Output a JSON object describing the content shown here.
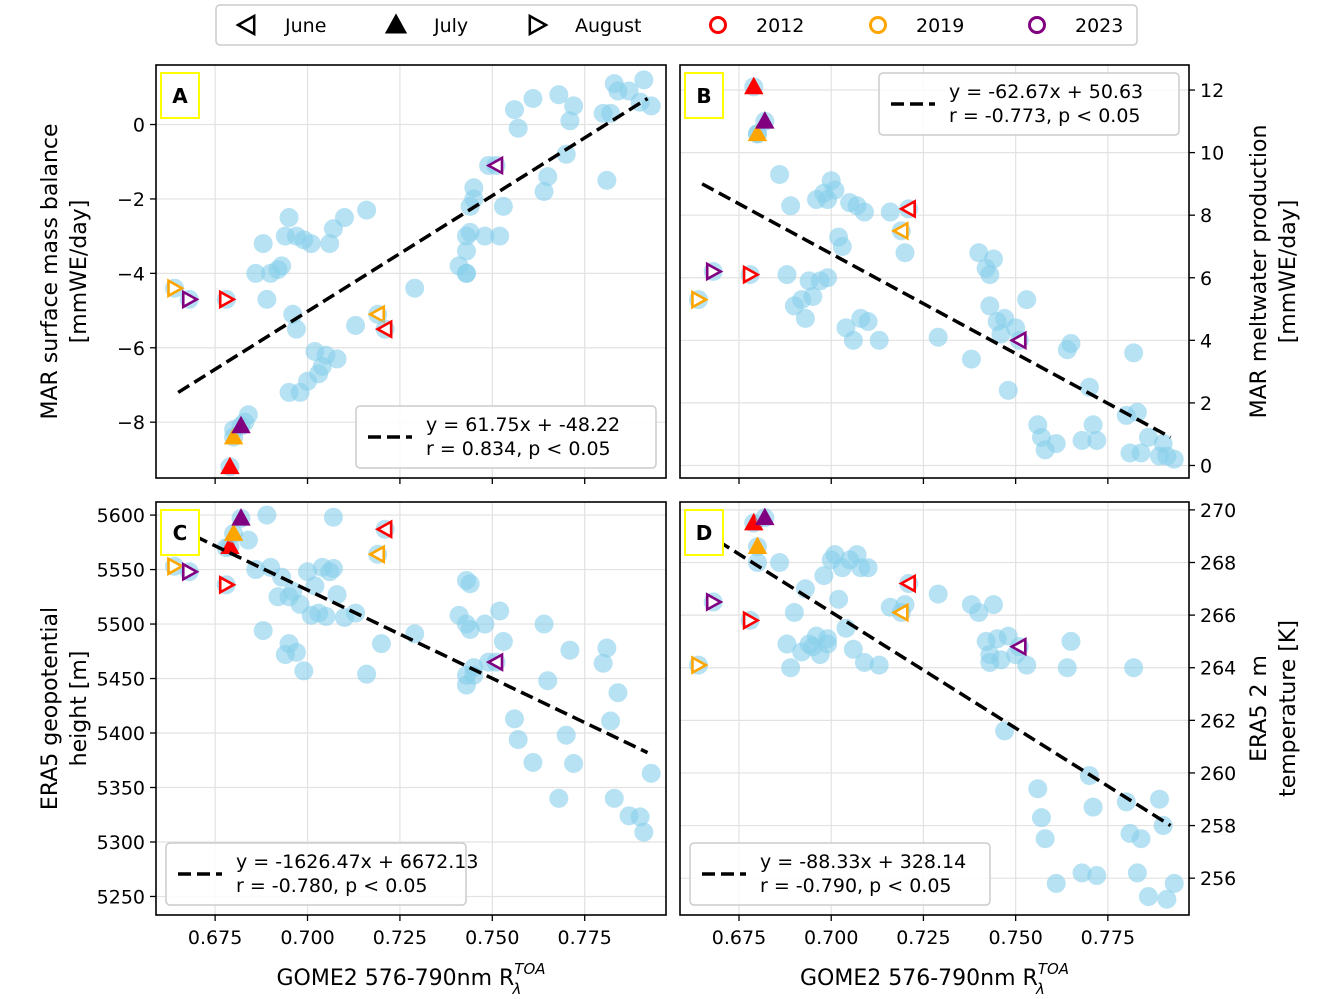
{
  "legend": {
    "entries": [
      {
        "label": "June",
        "marker": "tri-left-open",
        "color": "#000000"
      },
      {
        "label": "July",
        "marker": "tri-up-filled",
        "color": "#000000"
      },
      {
        "label": "August",
        "marker": "tri-right-open",
        "color": "#000000"
      },
      {
        "label": "2012",
        "marker": "circle-open",
        "color": "#ff0000"
      },
      {
        "label": "2019",
        "marker": "circle-open",
        "color": "#ffa500"
      },
      {
        "label": "2023",
        "marker": "circle-open",
        "color": "#800080"
      }
    ]
  },
  "colors": {
    "points": "#87ceeb",
    "fit": "#000000",
    "grid": "#e2e2e2",
    "panel_label_border": "#ffff00",
    "2012": "#ff0000",
    "2019": "#ffa500",
    "2023": "#800080"
  },
  "chart_data": [
    {
      "panel": "A",
      "type": "scatter",
      "ylabel_lines": [
        "MAR surface mass balance",
        "[mmWE/day]"
      ],
      "ylabel_side": "left",
      "xlabel": "",
      "xlim": [
        0.659,
        0.797
      ],
      "ylim": [
        -9.5,
        1.6
      ],
      "xticks": [
        0.675,
        0.7,
        0.725,
        0.75,
        0.775
      ],
      "xtick_labels": [],
      "yticks": [
        0,
        -2,
        -4,
        -6,
        -8
      ],
      "ytick_labels": [
        "0",
        "−2",
        "−4",
        "−6",
        "−8"
      ],
      "fit": {
        "x": [
          0.665,
          0.792
        ],
        "y": [
          -7.2,
          0.7
        ]
      },
      "fit_text": [
        "y = 61.75x + -48.22",
        "r = 0.834, p < 0.05"
      ],
      "fit_loc": "bottom-right",
      "x": [
        0.68,
        0.683,
        0.684,
        0.686,
        0.688,
        0.689,
        0.69,
        0.692,
        0.693,
        0.694,
        0.695,
        0.695,
        0.696,
        0.697,
        0.697,
        0.698,
        0.699,
        0.7,
        0.701,
        0.702,
        0.703,
        0.704,
        0.705,
        0.706,
        0.707,
        0.708,
        0.71,
        0.713,
        0.716,
        0.729,
        0.741,
        0.743,
        0.743,
        0.743,
        0.743,
        0.744,
        0.744,
        0.745,
        0.745,
        0.748,
        0.749,
        0.752,
        0.753,
        0.756,
        0.757,
        0.761,
        0.764,
        0.765,
        0.768,
        0.77,
        0.771,
        0.772,
        0.78,
        0.781,
        0.782,
        0.783,
        0.784,
        0.787,
        0.79,
        0.791,
        0.793
      ],
      "y": [
        -8.2,
        -8.0,
        -7.8,
        -4.0,
        -3.2,
        -4.7,
        -4.0,
        -3.9,
        -3.8,
        -3.0,
        -2.5,
        -7.2,
        -5.1,
        -3.0,
        -5.5,
        -7.2,
        -3.1,
        -6.9,
        -3.2,
        -6.1,
        -6.7,
        -6.5,
        -6.2,
        -3.2,
        -2.8,
        -6.3,
        -2.5,
        -5.4,
        -2.3,
        -4.4,
        -3.8,
        -4.0,
        -4.0,
        -3.4,
        -3.0,
        -2.2,
        -2.9,
        -1.7,
        -2.0,
        -3.0,
        -1.1,
        -3.0,
        -2.2,
        0.4,
        -0.1,
        0.7,
        -1.8,
        -1.4,
        0.8,
        -0.8,
        0.1,
        0.5,
        0.3,
        -1.5,
        0.3,
        1.1,
        0.9,
        0.9,
        0.6,
        1.2,
        0.5
      ],
      "highlights": [
        {
          "x": 0.664,
          "y": -4.4,
          "month": "August",
          "year": "2019"
        },
        {
          "x": 0.668,
          "y": -4.7,
          "month": "August",
          "year": "2023"
        },
        {
          "x": 0.678,
          "y": -4.7,
          "month": "August",
          "year": "2012"
        },
        {
          "x": 0.679,
          "y": -9.2,
          "month": "July",
          "year": "2012"
        },
        {
          "x": 0.68,
          "y": -8.4,
          "month": "July",
          "year": "2019"
        },
        {
          "x": 0.682,
          "y": -8.1,
          "month": "July",
          "year": "2023"
        },
        {
          "x": 0.719,
          "y": -5.1,
          "month": "June",
          "year": "2019"
        },
        {
          "x": 0.721,
          "y": -5.5,
          "month": "June",
          "year": "2012"
        },
        {
          "x": 0.751,
          "y": -1.1,
          "month": "June",
          "year": "2023"
        }
      ]
    },
    {
      "panel": "B",
      "type": "scatter",
      "ylabel_lines": [
        "MAR meltwater production",
        "[mmWE/day]"
      ],
      "ylabel_side": "right",
      "xlabel": "",
      "xlim": [
        0.659,
        0.797
      ],
      "ylim": [
        -0.4,
        12.8
      ],
      "xticks": [
        0.675,
        0.7,
        0.725,
        0.75,
        0.775
      ],
      "xtick_labels": [],
      "yticks": [
        0,
        2,
        4,
        6,
        8,
        10,
        12
      ],
      "ytick_labels": [
        "0",
        "2",
        "4",
        "6",
        "8",
        "10",
        "12"
      ],
      "fit": {
        "x": [
          0.665,
          0.792
        ],
        "y": [
          9.0,
          0.9
        ]
      },
      "fit_text": [
        "y = -62.67x + 50.63",
        "r = -0.773, p < 0.05"
      ],
      "fit_loc": "top-right",
      "x": [
        0.68,
        0.686,
        0.688,
        0.689,
        0.69,
        0.692,
        0.693,
        0.694,
        0.695,
        0.696,
        0.697,
        0.698,
        0.699,
        0.699,
        0.7,
        0.701,
        0.702,
        0.703,
        0.704,
        0.705,
        0.706,
        0.707,
        0.708,
        0.709,
        0.71,
        0.713,
        0.716,
        0.72,
        0.729,
        0.738,
        0.74,
        0.742,
        0.743,
        0.743,
        0.744,
        0.745,
        0.746,
        0.747,
        0.748,
        0.75,
        0.753,
        0.756,
        0.757,
        0.758,
        0.761,
        0.764,
        0.765,
        0.768,
        0.77,
        0.771,
        0.772,
        0.78,
        0.781,
        0.782,
        0.783,
        0.784,
        0.786,
        0.789,
        0.79,
        0.791,
        0.793
      ],
      "y": [
        10.6,
        9.3,
        6.1,
        8.3,
        5.1,
        5.3,
        4.7,
        5.9,
        5.4,
        8.5,
        5.9,
        8.7,
        8.5,
        6.0,
        9.1,
        8.8,
        7.3,
        7.0,
        4.4,
        8.4,
        4.0,
        8.3,
        4.7,
        8.1,
        4.6,
        4.0,
        8.1,
        6.8,
        4.1,
        3.4,
        6.8,
        6.3,
        6.1,
        5.1,
        6.6,
        4.6,
        4.2,
        4.7,
        2.4,
        4.4,
        5.3,
        1.3,
        0.9,
        0.5,
        0.7,
        3.7,
        3.9,
        0.8,
        2.5,
        1.3,
        0.8,
        1.6,
        0.4,
        3.6,
        1.7,
        0.4,
        0.9,
        0.3,
        0.7,
        0.3,
        0.2
      ],
      "highlights": [
        {
          "x": 0.664,
          "y": 5.3,
          "month": "August",
          "year": "2019"
        },
        {
          "x": 0.668,
          "y": 6.2,
          "month": "August",
          "year": "2023"
        },
        {
          "x": 0.678,
          "y": 6.1,
          "month": "August",
          "year": "2012"
        },
        {
          "x": 0.679,
          "y": 12.1,
          "month": "July",
          "year": "2012"
        },
        {
          "x": 0.68,
          "y": 10.6,
          "month": "July",
          "year": "2019"
        },
        {
          "x": 0.682,
          "y": 11.0,
          "month": "July",
          "year": "2023"
        },
        {
          "x": 0.719,
          "y": 7.5,
          "month": "June",
          "year": "2019"
        },
        {
          "x": 0.721,
          "y": 8.2,
          "month": "June",
          "year": "2012"
        },
        {
          "x": 0.751,
          "y": 4.0,
          "month": "June",
          "year": "2023"
        }
      ]
    },
    {
      "panel": "C",
      "type": "scatter",
      "ylabel_lines": [
        "ERA5 geopotential",
        "height [m]"
      ],
      "ylabel_side": "left",
      "xlabel": "GOME2 576-790nm R",
      "xlabel_sub": "λ",
      "xlabel_sup": "TOA",
      "xlim": [
        0.659,
        0.797
      ],
      "ylim": [
        5233,
        5612
      ],
      "xticks": [
        0.675,
        0.7,
        0.725,
        0.75,
        0.775
      ],
      "xtick_labels": [
        "0.675",
        "0.700",
        "0.725",
        "0.750",
        "0.775"
      ],
      "yticks": [
        5250,
        5300,
        5350,
        5400,
        5450,
        5500,
        5550,
        5600
      ],
      "ytick_labels": [
        "5250",
        "5300",
        "5350",
        "5400",
        "5450",
        "5500",
        "5550",
        "5600"
      ],
      "fit": {
        "x": [
          0.665,
          0.792
        ],
        "y": [
          5588,
          5382
        ]
      },
      "fit_text": [
        "y = -1626.47x + 6672.13",
        "r = -0.780, p < 0.05"
      ],
      "fit_loc": "bottom-left",
      "x": [
        0.678,
        0.684,
        0.686,
        0.688,
        0.689,
        0.69,
        0.692,
        0.693,
        0.694,
        0.695,
        0.695,
        0.696,
        0.697,
        0.698,
        0.699,
        0.7,
        0.701,
        0.702,
        0.703,
        0.704,
        0.705,
        0.706,
        0.707,
        0.707,
        0.708,
        0.71,
        0.713,
        0.716,
        0.72,
        0.729,
        0.741,
        0.743,
        0.743,
        0.743,
        0.743,
        0.744,
        0.744,
        0.745,
        0.745,
        0.748,
        0.749,
        0.752,
        0.753,
        0.756,
        0.757,
        0.761,
        0.764,
        0.765,
        0.768,
        0.77,
        0.771,
        0.772,
        0.78,
        0.781,
        0.782,
        0.783,
        0.784,
        0.787,
        0.79,
        0.791,
        0.793
      ],
      "y": [
        5570,
        5577,
        5550,
        5494,
        5600,
        5552,
        5525,
        5543,
        5472,
        5482,
        5525,
        5530,
        5474,
        5518,
        5457,
        5548,
        5508,
        5535,
        5510,
        5552,
        5507,
        5548,
        5598,
        5551,
        5527,
        5506,
        5510,
        5454,
        5482,
        5491,
        5508,
        5500,
        5453,
        5444,
        5540,
        5537,
        5495,
        5460,
        5453,
        5500,
        5465,
        5512,
        5484,
        5413,
        5394,
        5373,
        5500,
        5448,
        5340,
        5398,
        5476,
        5372,
        5464,
        5478,
        5411,
        5340,
        5437,
        5324,
        5323,
        5309,
        5363
      ],
      "highlights": [
        {
          "x": 0.664,
          "y": 5553,
          "month": "August",
          "year": "2019"
        },
        {
          "x": 0.668,
          "y": 5548,
          "month": "August",
          "year": "2023"
        },
        {
          "x": 0.678,
          "y": 5536,
          "month": "August",
          "year": "2012"
        },
        {
          "x": 0.679,
          "y": 5571,
          "month": "July",
          "year": "2012"
        },
        {
          "x": 0.68,
          "y": 5583,
          "month": "July",
          "year": "2019"
        },
        {
          "x": 0.682,
          "y": 5597,
          "month": "July",
          "year": "2023"
        },
        {
          "x": 0.719,
          "y": 5564,
          "month": "June",
          "year": "2019"
        },
        {
          "x": 0.721,
          "y": 5587,
          "month": "June",
          "year": "2012"
        },
        {
          "x": 0.751,
          "y": 5465,
          "month": "June",
          "year": "2023"
        }
      ]
    },
    {
      "panel": "D",
      "type": "scatter",
      "ylabel_lines": [
        "ERA5 2 m",
        "temperature [K]"
      ],
      "ylabel_side": "right",
      "xlabel": "GOME2 576-790nm R",
      "xlabel_sub": "λ",
      "xlabel_sup": "TOA",
      "xlim": [
        0.659,
        0.797
      ],
      "ylim": [
        254.6,
        270.3
      ],
      "xticks": [
        0.675,
        0.7,
        0.725,
        0.75,
        0.775
      ],
      "xtick_labels": [
        "0.675",
        "0.700",
        "0.725",
        "0.750",
        "0.775"
      ],
      "yticks": [
        256,
        258,
        260,
        262,
        264,
        266,
        268,
        270
      ],
      "ytick_labels": [
        "256",
        "258",
        "260",
        "262",
        "264",
        "266",
        "268",
        "270"
      ],
      "fit": {
        "x": [
          0.665,
          0.792
        ],
        "y": [
          269.2,
          258.0
        ]
      },
      "fit_text": [
        "y = -88.33x + 328.14",
        "r = -0.790, p < 0.05"
      ],
      "fit_loc": "bottom-left",
      "x": [
        0.68,
        0.686,
        0.688,
        0.689,
        0.69,
        0.692,
        0.693,
        0.694,
        0.695,
        0.696,
        0.697,
        0.698,
        0.699,
        0.699,
        0.7,
        0.701,
        0.702,
        0.703,
        0.704,
        0.705,
        0.706,
        0.707,
        0.708,
        0.709,
        0.71,
        0.713,
        0.716,
        0.72,
        0.729,
        0.738,
        0.74,
        0.742,
        0.743,
        0.743,
        0.744,
        0.745,
        0.746,
        0.747,
        0.748,
        0.75,
        0.753,
        0.756,
        0.757,
        0.758,
        0.761,
        0.764,
        0.765,
        0.768,
        0.77,
        0.771,
        0.772,
        0.78,
        0.781,
        0.782,
        0.783,
        0.784,
        0.786,
        0.789,
        0.79,
        0.791,
        0.793
      ],
      "y": [
        268.0,
        268.0,
        264.9,
        264.0,
        266.1,
        264.6,
        267.0,
        264.9,
        264.8,
        265.2,
        264.5,
        267.5,
        264.9,
        265.1,
        268.1,
        268.3,
        266.6,
        267.8,
        265.5,
        268.1,
        264.7,
        268.3,
        267.8,
        264.2,
        267.8,
        264.1,
        266.3,
        266.4,
        266.8,
        266.4,
        266.1,
        265.0,
        264.5,
        264.2,
        266.4,
        265.1,
        264.3,
        261.6,
        265.2,
        264.5,
        264.1,
        259.4,
        258.3,
        257.5,
        255.8,
        264.0,
        265.0,
        256.2,
        259.9,
        258.7,
        256.1,
        258.9,
        257.7,
        264.0,
        256.2,
        257.5,
        255.3,
        259.0,
        258.0,
        255.2,
        255.8
      ],
      "highlights": [
        {
          "x": 0.664,
          "y": 264.1,
          "month": "August",
          "year": "2019"
        },
        {
          "x": 0.668,
          "y": 266.5,
          "month": "August",
          "year": "2023"
        },
        {
          "x": 0.678,
          "y": 265.8,
          "month": "August",
          "year": "2012"
        },
        {
          "x": 0.679,
          "y": 269.5,
          "month": "July",
          "year": "2012"
        },
        {
          "x": 0.68,
          "y": 268.6,
          "month": "July",
          "year": "2019"
        },
        {
          "x": 0.682,
          "y": 269.7,
          "month": "July",
          "year": "2023"
        },
        {
          "x": 0.719,
          "y": 266.1,
          "month": "June",
          "year": "2019"
        },
        {
          "x": 0.721,
          "y": 267.2,
          "month": "June",
          "year": "2012"
        },
        {
          "x": 0.751,
          "y": 264.8,
          "month": "June",
          "year": "2023"
        }
      ]
    }
  ]
}
